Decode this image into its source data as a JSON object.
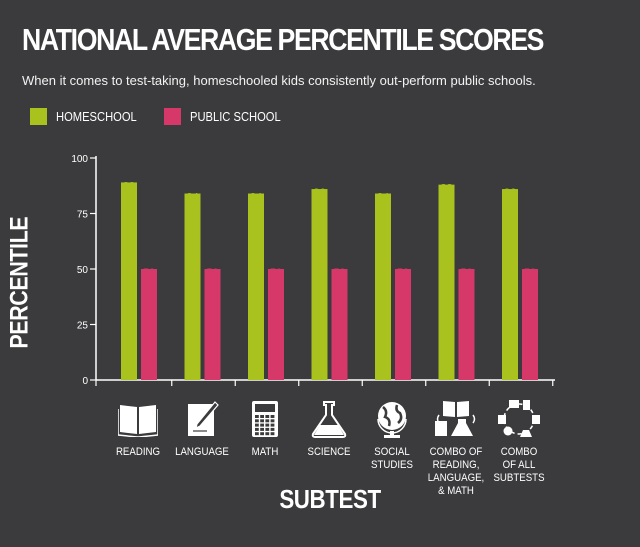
{
  "title": "NATIONAL AVERAGE PERCENTILE SCORES",
  "subtitle": "When it comes to test-taking, homeschooled kids consistently out-perform public schools.",
  "colors": {
    "homeschool": "#a9c21d",
    "public": "#d6386a",
    "background": "#3b3b3d",
    "text": "#ffffff"
  },
  "chart_data": {
    "type": "bar",
    "title": "NATIONAL AVERAGE PERCENTILE SCORES",
    "xlabel": "SUBTEST",
    "ylabel": "PERCENTILE",
    "ylim": [
      0,
      100
    ],
    "yticks": [
      "0",
      "25",
      "50",
      "75",
      "100"
    ],
    "grid": false,
    "legend_position": "top-left",
    "categories": [
      "READING",
      "LANGUAGE",
      "MATH",
      "SCIENCE",
      "SOCIAL\nSTUDIES",
      "COMBO OF\nREADING,\nLANGUAGE,\n& MATH",
      "COMBO\nOF ALL\nSUBTESTS"
    ],
    "series": [
      {
        "name": "HOMESCHOOL",
        "color": "#a9c21d",
        "values": [
          89,
          84,
          84,
          86,
          84,
          88,
          86
        ]
      },
      {
        "name": "PUBLIC SCHOOL",
        "color": "#d6386a",
        "values": [
          50,
          50,
          50,
          50,
          50,
          50,
          50
        ]
      }
    ],
    "category_icons": [
      "book-icon",
      "pen-on-paper-icon",
      "calculator-icon",
      "flask-icon",
      "globe-icon",
      "combo-reading-language-math-icon",
      "combo-all-subtests-icon"
    ]
  }
}
